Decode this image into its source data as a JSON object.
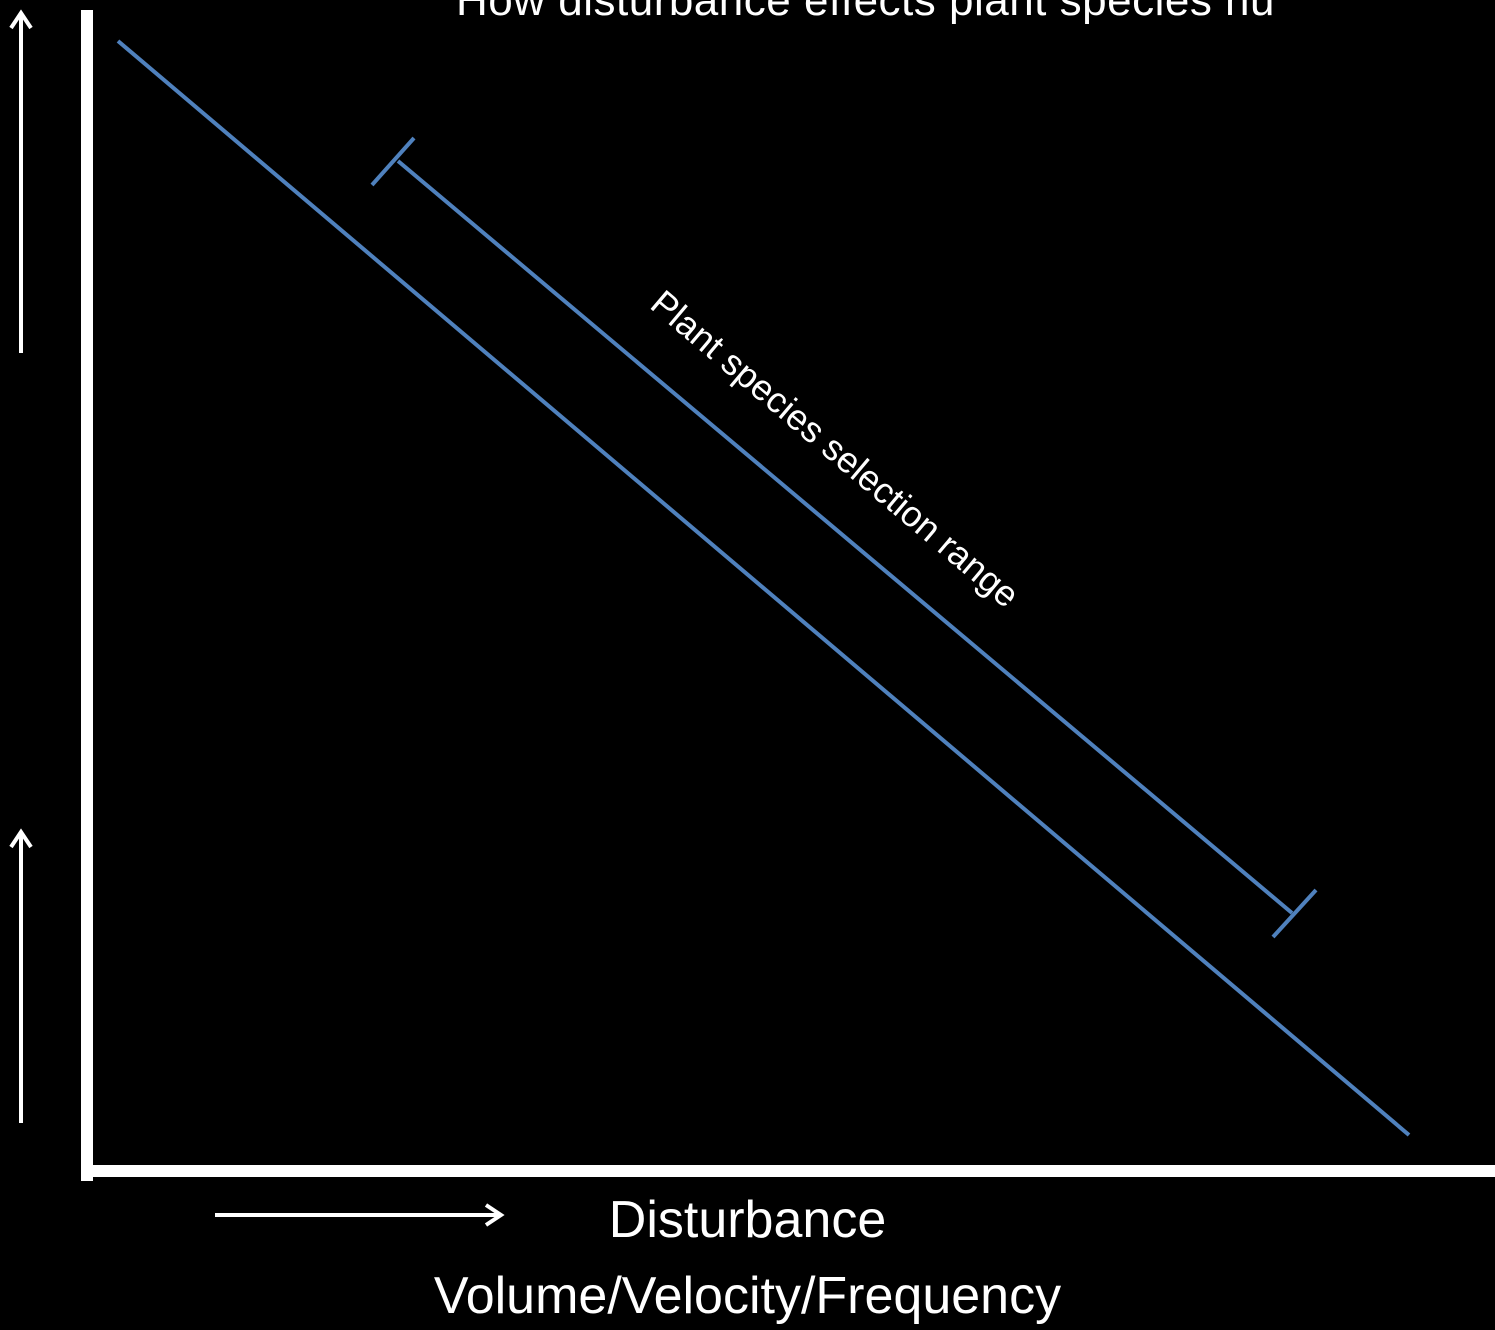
{
  "diagram": {
    "title": "How disturbance effects plant species nu",
    "x_axis_label_line1": "Disturbance",
    "x_axis_label_line2": "Volume/Velocity/Frequency",
    "range_annotation": "Plant species selection range",
    "colors": {
      "background": "#000000",
      "axes": "#ffffff",
      "arrows": "#ffffff",
      "trend_line": "#4f81bd",
      "text": "#ffffff"
    },
    "icons": [
      "up-arrow-icon",
      "up-arrow-icon",
      "right-arrow-icon"
    ]
  }
}
